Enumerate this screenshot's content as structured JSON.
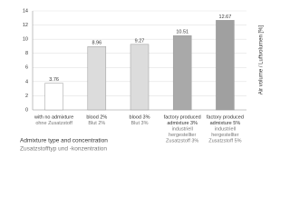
{
  "chart_data": {
    "type": "bar",
    "y_label": "Air volume / Luftvolumen [%]",
    "x_label": [
      "Admixture type and concentration",
      "Zusatzstofftyp und -konzentration"
    ],
    "categories": [
      [
        "with no admixture",
        "ohne Zusatzstoff"
      ],
      [
        "blood 2%",
        "Blut 2%"
      ],
      [
        "blood 3%",
        "Blut 3%"
      ],
      [
        "factory produced",
        "admixture 3%",
        "industriell",
        "hergestellter",
        "Zusatzstoff 3%"
      ],
      [
        "factory produced",
        "admixture 5%",
        "industriell",
        "hergestellter",
        "Zusatzstoff 5%"
      ]
    ],
    "category_lines_en": [
      1,
      1,
      1,
      2,
      2
    ],
    "values": [
      3.76,
      8.96,
      9.27,
      10.51,
      12.67
    ],
    "colors": [
      "#ffffff",
      "#dcdcdc",
      "#dcdcdc",
      "#a9a9a9",
      "#a0a0a0"
    ],
    "ylim": [
      0,
      14
    ],
    "yticks": [
      0,
      2,
      4,
      6,
      8,
      10,
      12,
      14
    ],
    "grid": true
  }
}
